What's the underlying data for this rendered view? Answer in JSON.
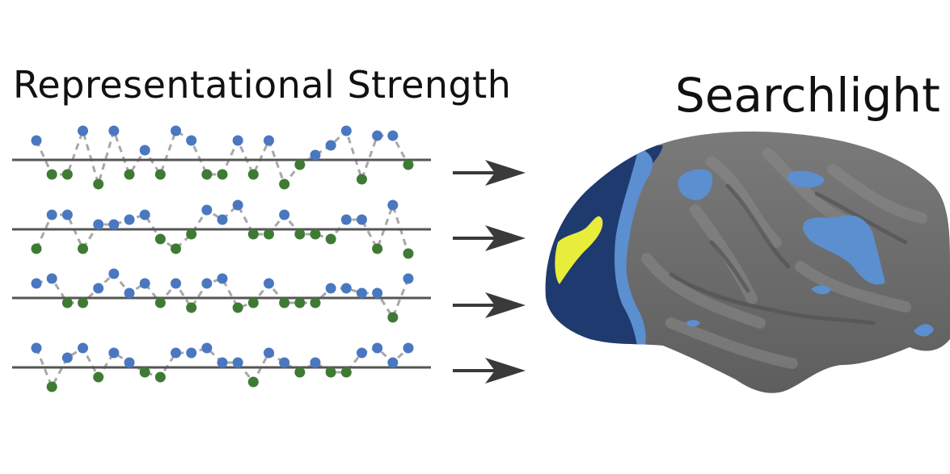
{
  "titles": {
    "left": "Representational Strength",
    "right": "Searchlight"
  },
  "colors": {
    "above": "#4a78c0",
    "below": "#3f7a35",
    "baseline": "#555555",
    "connector": "#a8a8a8",
    "arrow": "#3a3a3a",
    "brain": "#6b6b6b",
    "map_dark": "#1e3a6e",
    "map_light": "#5b8fcf",
    "highlight": "#e8ec3a"
  },
  "series": [
    [
      2,
      -1.5,
      -1.5,
      3,
      -2.5,
      3,
      -1.5,
      1,
      -1.5,
      3,
      2,
      -1.5,
      -1.5,
      2,
      -1.5,
      2,
      -2.5,
      -0.5,
      0.5,
      1.5,
      3,
      -2,
      2.5,
      2.5,
      -0.5
    ],
    [
      -2,
      1.5,
      1.5,
      -2,
      0.5,
      0.5,
      1,
      1.5,
      -1,
      -2,
      -0.5,
      2,
      1,
      2.5,
      -0.5,
      -0.5,
      1.5,
      -0.5,
      -0.5,
      -1,
      1,
      1,
      -2,
      2.5,
      -2.5
    ],
    [
      1.5,
      2,
      -0.5,
      -0.5,
      1,
      2.5,
      0.5,
      1.5,
      -0.5,
      1.5,
      -1,
      1.5,
      2,
      -1,
      -0.5,
      1.5,
      -0.5,
      -0.5,
      -0.5,
      1,
      1,
      0.5,
      0.5,
      -2,
      2
    ],
    [
      2,
      -2,
      1,
      2,
      -1,
      1.5,
      0.5,
      -0.5,
      -1,
      1.5,
      1.5,
      2,
      0.5,
      0.5,
      -1.5,
      1.5,
      0.5,
      -0.5,
      0.5,
      -0.5,
      -0.5,
      1.5,
      2,
      0.5,
      2
    ]
  ]
}
